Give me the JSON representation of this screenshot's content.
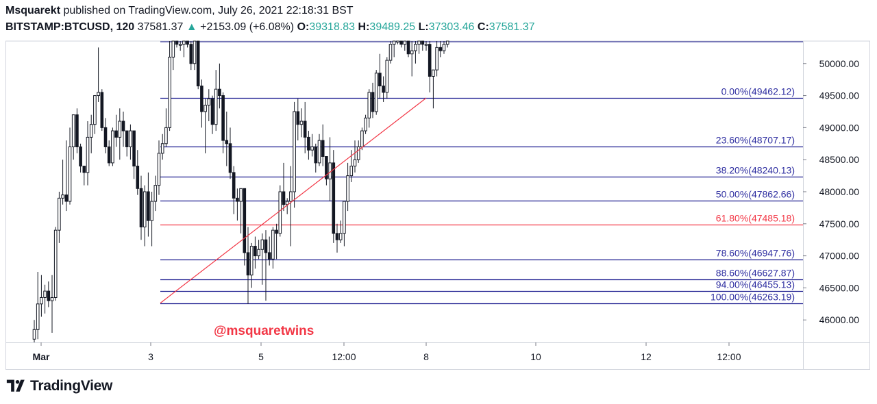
{
  "header": {
    "author": "Msquarekt",
    "published_text": "published on TradingView.com, July 26, 2021 22:18:31 BST",
    "symbol": "BITSTAMP:BTCUSD, 120",
    "last_price": "37581.37",
    "change_arrow": "▲",
    "change": "+2153.09 (+6.08%)",
    "o_label": "O:",
    "o_value": "39318.83",
    "h_label": "H:",
    "h_value": "39489.25",
    "l_label": "L:",
    "l_value": "37303.46",
    "c_label": "C:",
    "c_value": "37581.37"
  },
  "watermark": "@msquaretwins",
  "footer": {
    "brand": "TradingView"
  },
  "colors": {
    "fib_line": "#1a1a8e",
    "fib_text": "#2d2da0",
    "golden": "#f23645",
    "trend": "#f23645",
    "watermark": "#f23645",
    "up": "#26a69a"
  },
  "chart_data": {
    "type": "candlestick",
    "y_axis": {
      "ticks": [
        "50000.00",
        "49500.00",
        "49000.00",
        "48500.00",
        "48000.00",
        "47500.00",
        "47000.00",
        "46500.00",
        "46000.00"
      ],
      "tick_values": [
        50000,
        49500,
        49000,
        48500,
        48000,
        47500,
        47000,
        46500,
        46000
      ],
      "range": [
        45650,
        50350
      ]
    },
    "x_axis": {
      "labels": [
        "Mar",
        "3",
        "5",
        "12:00",
        "8",
        "10",
        "12",
        "12:00"
      ]
    },
    "fib_levels": [
      {
        "label": "0.00%(49462.12)",
        "price": 49462.12
      },
      {
        "label": "23.60%(48707.17)",
        "price": 48707.17
      },
      {
        "label": "38.20%(48240.13)",
        "price": 48240.13
      },
      {
        "label": "50.00%(47862.66)",
        "price": 47862.66
      },
      {
        "label": "61.80%(47485.18)",
        "price": 47485.18,
        "highlight": true
      },
      {
        "label": "78.60%(46947.76)",
        "price": 46947.76
      },
      {
        "label": "88.60%(46627.87)",
        "price": 46627.87
      },
      {
        "label": "94.00%(46455.13)",
        "price": 46455.13
      },
      {
        "label": "100.00%(46263.19)",
        "price": 46263.19
      }
    ],
    "trend_line": {
      "from_price": 46263.19,
      "to_price": 49462.12
    },
    "candles": [
      {
        "o": 45700,
        "h": 46000,
        "l": 45650,
        "c": 45850
      },
      {
        "o": 45850,
        "h": 46750,
        "l": 45700,
        "c": 46250
      },
      {
        "o": 46250,
        "h": 46700,
        "l": 46050,
        "c": 46350
      },
      {
        "o": 46350,
        "h": 46550,
        "l": 46100,
        "c": 46450
      },
      {
        "o": 46450,
        "h": 46600,
        "l": 46200,
        "c": 46300
      },
      {
        "o": 46300,
        "h": 46700,
        "l": 45800,
        "c": 46350
      },
      {
        "o": 46350,
        "h": 47450,
        "l": 46300,
        "c": 47400
      },
      {
        "o": 47400,
        "h": 48000,
        "l": 47200,
        "c": 47900
      },
      {
        "o": 47900,
        "h": 48500,
        "l": 47800,
        "c": 47950
      },
      {
        "o": 47950,
        "h": 48800,
        "l": 47700,
        "c": 47850
      },
      {
        "o": 47850,
        "h": 49000,
        "l": 47800,
        "c": 48700
      },
      {
        "o": 48700,
        "h": 49200,
        "l": 48500,
        "c": 49200
      },
      {
        "o": 49200,
        "h": 49300,
        "l": 48600,
        "c": 48700
      },
      {
        "o": 48700,
        "h": 48750,
        "l": 48300,
        "c": 48400
      },
      {
        "o": 48400,
        "h": 48400,
        "l": 48100,
        "c": 48300
      },
      {
        "o": 48300,
        "h": 49100,
        "l": 48100,
        "c": 48850
      },
      {
        "o": 48850,
        "h": 49200,
        "l": 48600,
        "c": 49050
      },
      {
        "o": 49050,
        "h": 49500,
        "l": 48900,
        "c": 49500
      },
      {
        "o": 49500,
        "h": 50250,
        "l": 49400,
        "c": 49550
      },
      {
        "o": 49550,
        "h": 49600,
        "l": 48950,
        "c": 49000
      },
      {
        "o": 49000,
        "h": 49150,
        "l": 48600,
        "c": 48700
      },
      {
        "o": 48700,
        "h": 48800,
        "l": 48400,
        "c": 48450
      },
      {
        "o": 48450,
        "h": 49000,
        "l": 48400,
        "c": 48950
      },
      {
        "o": 48950,
        "h": 49200,
        "l": 48700,
        "c": 48850
      },
      {
        "o": 48850,
        "h": 49300,
        "l": 48500,
        "c": 49100
      },
      {
        "o": 49100,
        "h": 49250,
        "l": 48700,
        "c": 48950
      },
      {
        "o": 48950,
        "h": 48950,
        "l": 48550,
        "c": 48700
      },
      {
        "o": 48700,
        "h": 49050,
        "l": 48500,
        "c": 48950
      },
      {
        "o": 48950,
        "h": 48950,
        "l": 48200,
        "c": 48400
      },
      {
        "o": 48400,
        "h": 48650,
        "l": 47950,
        "c": 48050
      },
      {
        "o": 48050,
        "h": 48250,
        "l": 47250,
        "c": 47450
      },
      {
        "o": 47450,
        "h": 48100,
        "l": 47150,
        "c": 48000
      },
      {
        "o": 48000,
        "h": 48300,
        "l": 47300,
        "c": 47550
      },
      {
        "o": 47550,
        "h": 48000,
        "l": 47150,
        "c": 47850
      },
      {
        "o": 47850,
        "h": 48250,
        "l": 47700,
        "c": 48100
      },
      {
        "o": 48100,
        "h": 48800,
        "l": 47950,
        "c": 48600
      },
      {
        "o": 48600,
        "h": 48900,
        "l": 48500,
        "c": 48750
      },
      {
        "o": 48750,
        "h": 49300,
        "l": 48700,
        "c": 49000
      },
      {
        "o": 49000,
        "h": 50350,
        "l": 48950,
        "c": 50100
      },
      {
        "o": 50100,
        "h": 50350,
        "l": 49900,
        "c": 50350
      },
      {
        "o": 50350,
        "h": 50350,
        "l": 50250,
        "c": 50300
      },
      {
        "o": 50300,
        "h": 50350,
        "l": 50200,
        "c": 50300
      },
      {
        "o": 50300,
        "h": 50350,
        "l": 50100,
        "c": 50350
      },
      {
        "o": 50350,
        "h": 50350,
        "l": 50250,
        "c": 50300
      },
      {
        "o": 50300,
        "h": 50350,
        "l": 49900,
        "c": 50000
      },
      {
        "o": 50000,
        "h": 50350,
        "l": 49900,
        "c": 50350
      },
      {
        "o": 50350,
        "h": 50350,
        "l": 49600,
        "c": 49650
      },
      {
        "o": 49650,
        "h": 49750,
        "l": 49000,
        "c": 49250
      },
      {
        "o": 49250,
        "h": 49450,
        "l": 48600,
        "c": 49350
      },
      {
        "o": 49350,
        "h": 49600,
        "l": 49100,
        "c": 49450
      },
      {
        "o": 49450,
        "h": 49500,
        "l": 48900,
        "c": 49050
      },
      {
        "o": 49050,
        "h": 49900,
        "l": 48950,
        "c": 49600
      },
      {
        "o": 49600,
        "h": 50000,
        "l": 49300,
        "c": 49500
      },
      {
        "o": 49500,
        "h": 49550,
        "l": 48600,
        "c": 48800
      },
      {
        "o": 48800,
        "h": 49250,
        "l": 48400,
        "c": 48750
      },
      {
        "o": 48750,
        "h": 49000,
        "l": 48200,
        "c": 48300
      },
      {
        "o": 48300,
        "h": 48400,
        "l": 47650,
        "c": 47900
      },
      {
        "o": 47900,
        "h": 48050,
        "l": 47550,
        "c": 47850
      },
      {
        "o": 47850,
        "h": 48050,
        "l": 47350,
        "c": 48050
      },
      {
        "o": 48050,
        "h": 48050,
        "l": 46850,
        "c": 47050
      },
      {
        "o": 47050,
        "h": 47450,
        "l": 46250,
        "c": 46700
      },
      {
        "o": 46700,
        "h": 47200,
        "l": 46500,
        "c": 47150
      },
      {
        "o": 47150,
        "h": 47300,
        "l": 46800,
        "c": 47000
      },
      {
        "o": 47000,
        "h": 47250,
        "l": 46950,
        "c": 47100
      },
      {
        "o": 47100,
        "h": 47350,
        "l": 46550,
        "c": 47250
      },
      {
        "o": 47250,
        "h": 47400,
        "l": 46300,
        "c": 47050
      },
      {
        "o": 47050,
        "h": 47300,
        "l": 46850,
        "c": 46950
      },
      {
        "o": 46950,
        "h": 47450,
        "l": 46800,
        "c": 47400
      },
      {
        "o": 47400,
        "h": 47500,
        "l": 46950,
        "c": 47350
      },
      {
        "o": 47350,
        "h": 48100,
        "l": 47300,
        "c": 48000
      },
      {
        "o": 48000,
        "h": 48450,
        "l": 47700,
        "c": 47800
      },
      {
        "o": 47800,
        "h": 47900,
        "l": 47650,
        "c": 47850
      },
      {
        "o": 47850,
        "h": 48400,
        "l": 47150,
        "c": 48000
      },
      {
        "o": 48000,
        "h": 49400,
        "l": 47750,
        "c": 49250
      },
      {
        "o": 49250,
        "h": 49450,
        "l": 48800,
        "c": 49050
      },
      {
        "o": 49050,
        "h": 49300,
        "l": 48850,
        "c": 49100
      },
      {
        "o": 49100,
        "h": 49400,
        "l": 48600,
        "c": 48850
      },
      {
        "o": 48850,
        "h": 48950,
        "l": 48500,
        "c": 48650
      },
      {
        "o": 48650,
        "h": 48900,
        "l": 48550,
        "c": 48700
      },
      {
        "o": 48700,
        "h": 48750,
        "l": 48300,
        "c": 48450
      },
      {
        "o": 48450,
        "h": 48900,
        "l": 48400,
        "c": 48800
      },
      {
        "o": 48800,
        "h": 49050,
        "l": 48400,
        "c": 48550
      },
      {
        "o": 48550,
        "h": 48550,
        "l": 48100,
        "c": 48200
      },
      {
        "o": 48200,
        "h": 48850,
        "l": 47850,
        "c": 48450
      },
      {
        "o": 48450,
        "h": 48650,
        "l": 47200,
        "c": 47350
      },
      {
        "o": 47350,
        "h": 47500,
        "l": 47050,
        "c": 47250
      },
      {
        "o": 47250,
        "h": 47550,
        "l": 47200,
        "c": 47350
      },
      {
        "o": 47350,
        "h": 47850,
        "l": 47150,
        "c": 47850
      },
      {
        "o": 47850,
        "h": 48450,
        "l": 47700,
        "c": 48250
      },
      {
        "o": 48250,
        "h": 48650,
        "l": 48150,
        "c": 48400
      },
      {
        "o": 48400,
        "h": 48800,
        "l": 48300,
        "c": 48500
      },
      {
        "o": 48500,
        "h": 48800,
        "l": 48450,
        "c": 48700
      },
      {
        "o": 48700,
        "h": 49000,
        "l": 48650,
        "c": 48950
      },
      {
        "o": 48950,
        "h": 49200,
        "l": 48900,
        "c": 49150
      },
      {
        "o": 49150,
        "h": 49600,
        "l": 49000,
        "c": 49550
      },
      {
        "o": 49550,
        "h": 49700,
        "l": 49150,
        "c": 49250
      },
      {
        "o": 49250,
        "h": 49900,
        "l": 49200,
        "c": 49850
      },
      {
        "o": 49850,
        "h": 50150,
        "l": 49450,
        "c": 49650
      },
      {
        "o": 49650,
        "h": 49800,
        "l": 49400,
        "c": 49550
      },
      {
        "o": 49550,
        "h": 50100,
        "l": 49450,
        "c": 50050
      },
      {
        "o": 50050,
        "h": 50350,
        "l": 50000,
        "c": 50300
      },
      {
        "o": 50300,
        "h": 50350,
        "l": 50100,
        "c": 50350
      },
      {
        "o": 50350,
        "h": 50350,
        "l": 50300,
        "c": 50350
      },
      {
        "o": 50350,
        "h": 50350,
        "l": 50250,
        "c": 50300
      },
      {
        "o": 50300,
        "h": 50350,
        "l": 50200,
        "c": 50350
      },
      {
        "o": 50350,
        "h": 50350,
        "l": 50100,
        "c": 50150
      },
      {
        "o": 50150,
        "h": 50350,
        "l": 49800,
        "c": 50200
      },
      {
        "o": 50200,
        "h": 50350,
        "l": 50000,
        "c": 50300
      },
      {
        "o": 50300,
        "h": 50350,
        "l": 50150,
        "c": 50350
      },
      {
        "o": 50350,
        "h": 50350,
        "l": 50200,
        "c": 50300
      },
      {
        "o": 50300,
        "h": 50350,
        "l": 50200,
        "c": 50300
      },
      {
        "o": 50300,
        "h": 50350,
        "l": 49550,
        "c": 49800
      },
      {
        "o": 49800,
        "h": 49900,
        "l": 49300,
        "c": 49900
      },
      {
        "o": 49900,
        "h": 50350,
        "l": 49800,
        "c": 50250
      },
      {
        "o": 50250,
        "h": 50350,
        "l": 50100,
        "c": 50200
      },
      {
        "o": 50200,
        "h": 50350,
        "l": 50150,
        "c": 50300
      },
      {
        "o": 50300,
        "h": 50350,
        "l": 50250,
        "c": 50350
      }
    ]
  }
}
